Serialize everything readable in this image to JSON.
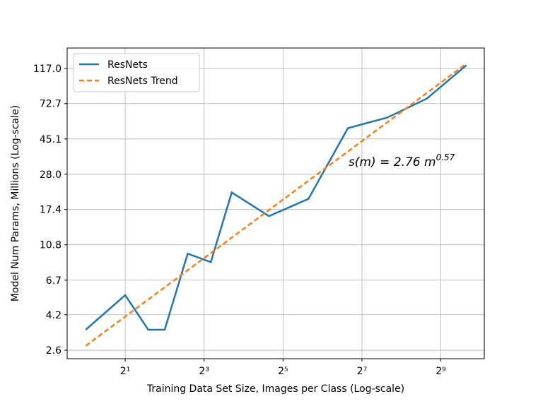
{
  "chart_data": {
    "type": "line",
    "xlabel": "Training Data Set Size, Images per Class (Log-scale)",
    "ylabel": "Model Num Params, Millions (Log-scale)",
    "annotation": {
      "text": "s(m) = 2.76 m",
      "superscript": "0.57"
    },
    "series": [
      {
        "name": "ResNets",
        "color": "#1f77b4",
        "dash": false,
        "x": [
          1,
          2,
          3,
          4,
          6,
          9,
          13,
          25,
          50,
          100,
          200,
          400,
          800
        ],
        "values": [
          3.43,
          5.47,
          3.43,
          3.43,
          9.59,
          8.55,
          21.9,
          15.9,
          20.1,
          52.2,
          60.2,
          77.8,
          121.9
        ]
      },
      {
        "name": "ResNets Trend",
        "color": "#ff7f0e",
        "dash": true,
        "x": [
          1,
          800
        ],
        "values": [
          2.76,
          124.6
        ]
      }
    ],
    "xscale": "log",
    "xbase": 2,
    "yscale": "log",
    "xlim": [
      0.722,
      1097
    ],
    "ylim": [
      2.32,
      154
    ],
    "xticks": [
      {
        "value": 2,
        "label": "2¹"
      },
      {
        "value": 8,
        "label": "2³"
      },
      {
        "value": 32,
        "label": "2⁵"
      },
      {
        "value": 128,
        "label": "2⁷"
      },
      {
        "value": 512,
        "label": "2⁹"
      }
    ],
    "yticks": [
      2.6,
      4.2,
      6.7,
      10.8,
      17.4,
      {
        "value": 28,
        "label": "28.0"
      },
      45.1,
      72.7,
      {
        "value": 117,
        "label": "117.0"
      }
    ],
    "grid": true,
    "legend": "upper left"
  }
}
